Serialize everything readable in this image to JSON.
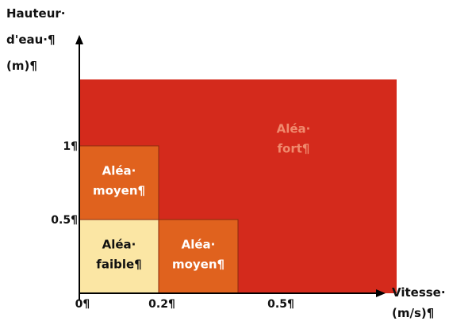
{
  "chart_data": {
    "type": "heatmap",
    "title": "",
    "ylabel": [
      "Hauteur·",
      "d'eau·¶",
      "(m)¶"
    ],
    "xlabel": [
      "Vitesse·",
      "(m/s)¶"
    ],
    "x_ticks": [
      {
        "value": 0,
        "label": "0¶"
      },
      {
        "value": 0.2,
        "label": "0.2¶"
      },
      {
        "value": 0.5,
        "label": "0.5¶"
      }
    ],
    "y_ticks": [
      {
        "value": 0.5,
        "label": "0.5¶"
      },
      {
        "value": 1,
        "label": "1¶"
      }
    ],
    "xlim": [
      0,
      0.8
    ],
    "ylim": [
      0,
      1.45
    ],
    "zones": [
      {
        "name": "fort",
        "x": [
          0,
          0.8
        ],
        "y": [
          0,
          1.45
        ],
        "lines": [
          "Aléa·",
          "fort¶"
        ],
        "fill": "#d42a1c",
        "text_color": "#f08a6e"
      },
      {
        "name": "moyen-1",
        "x": [
          0,
          0.2
        ],
        "y": [
          0.5,
          1
        ],
        "lines": [
          "Aléa·",
          "moyen¶"
        ],
        "fill": "#e0621e",
        "text_color": "#ffffff"
      },
      {
        "name": "faible",
        "x": [
          0,
          0.2
        ],
        "y": [
          0,
          0.5
        ],
        "lines": [
          "Aléa·",
          "faible¶"
        ],
        "fill": "#fbe6a4",
        "text_color": "#111111"
      },
      {
        "name": "moyen-2",
        "x": [
          0.2,
          0.4
        ],
        "y": [
          0,
          0.5
        ],
        "lines": [
          "Aléa·",
          "moyen¶"
        ],
        "fill": "#e0621e",
        "text_color": "#ffffff"
      }
    ],
    "grid": false,
    "legend": "none"
  }
}
